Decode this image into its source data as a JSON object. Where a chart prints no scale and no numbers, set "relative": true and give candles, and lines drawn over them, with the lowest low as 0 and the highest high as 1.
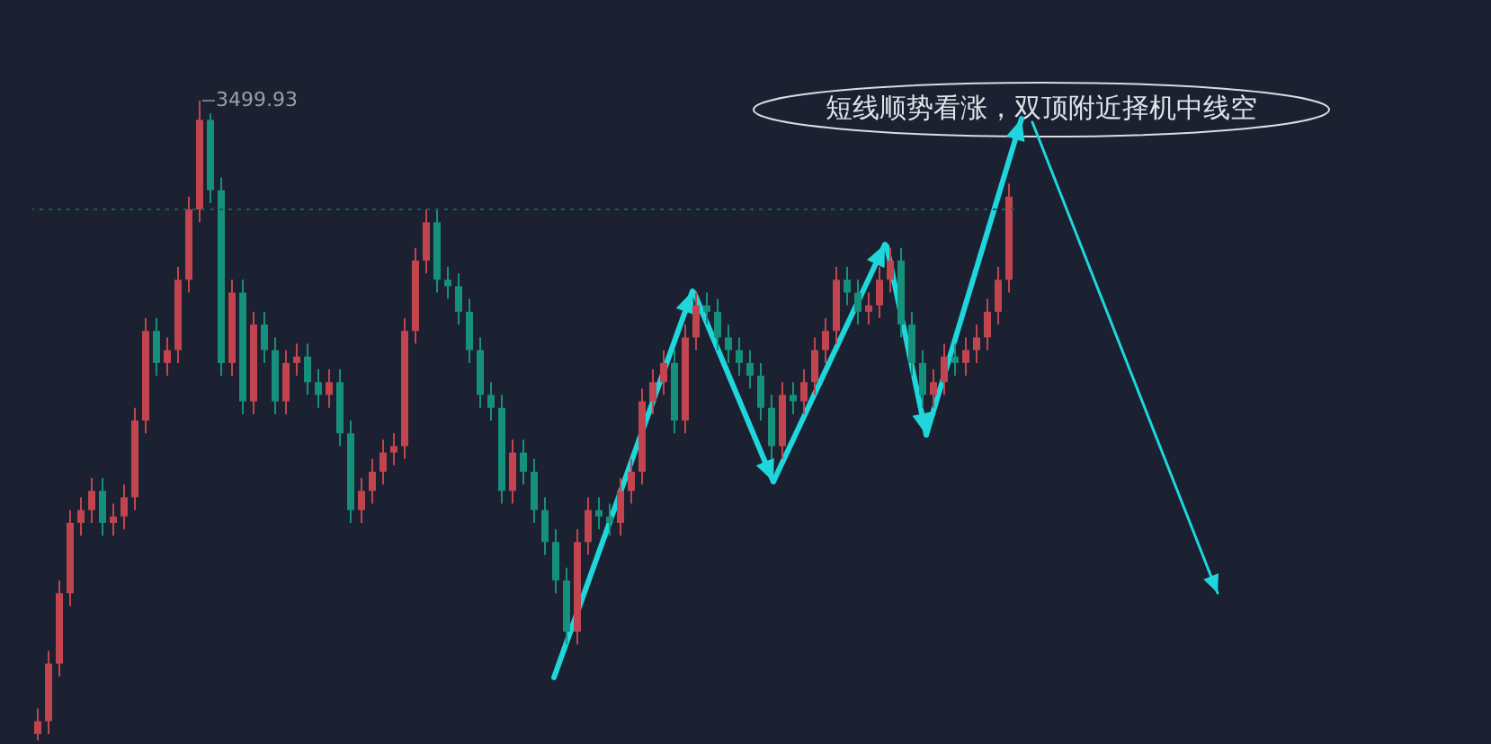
{
  "chart_data": {
    "type": "candlestick",
    "relative": true,
    "colors": [
      "#c1444f",
      "#c1444f",
      "#c1444f",
      "#c1444f",
      "#c1444f",
      "#c1444f",
      "#15907a",
      "#c1444f",
      "#c1444f",
      "#c1444f",
      "#c1444f",
      "#15907a",
      "#c1444f",
      "#c1444f",
      "#c1444f",
      "#c1444f",
      "#15907a",
      "#15907a",
      "#c1444f",
      "#15907a",
      "#c1444f",
      "#15907a",
      "#15907a",
      "#c1444f",
      "#c1444f",
      "#15907a",
      "#15907a",
      "#c1444f",
      "#15907a",
      "#15907a",
      "#c1444f",
      "#c1444f",
      "#c1444f",
      "#c1444f",
      "#c1444f",
      "#c1444f",
      "#c1444f",
      "#15907a",
      "#15907a",
      "#15907a",
      "#15907a",
      "#15907a",
      "#15907a",
      "#15907a",
      "#c1444f",
      "#15907a",
      "#15907a",
      "#15907a",
      "#15907a",
      "#15907a",
      "#c1444f",
      "#c1444f",
      "#15907a",
      "#15907a",
      "#c1444f",
      "#c1444f",
      "#c1444f",
      "#c1444f",
      "#c1444f",
      "#15907a",
      "#c1444f",
      "#c1444f",
      "#15907a",
      "#15907a",
      "#15907a",
      "#15907a",
      "#15907a",
      "#15907a",
      "#15907a",
      "#c1444f",
      "#15907a",
      "#c1444f",
      "#c1444f",
      "#c1444f",
      "#c1444f",
      "#15907a",
      "#15907a",
      "#c1444f",
      "#c1444f",
      "#c1444f",
      "#15907a",
      "#15907a",
      "#15907a",
      "#c1444f",
      "#c1444f",
      "#15907a",
      "#c1444f",
      "#c1444f",
      "#c1444f",
      "#c1444f",
      "#c1444f"
    ],
    "categories": [
      null,
      null,
      null,
      null,
      null,
      null,
      null,
      null,
      null,
      null,
      null,
      null,
      null,
      null,
      null,
      null,
      null,
      null,
      null,
      null,
      null,
      null,
      null,
      null,
      null,
      null,
      null,
      null,
      null,
      null,
      null,
      null,
      null,
      null,
      null,
      null,
      null,
      null,
      null,
      null,
      null,
      null,
      null,
      null,
      null,
      null,
      null,
      null,
      null,
      null,
      null,
      null,
      null,
      null,
      null,
      null,
      null,
      null,
      null,
      null,
      null,
      null,
      null,
      null,
      null,
      null,
      null,
      null,
      null,
      null,
      null,
      null,
      null,
      null,
      null,
      null,
      null,
      null,
      null,
      null,
      null,
      null,
      null,
      null,
      null,
      null,
      null,
      null,
      null,
      null,
      null
    ],
    "ohlc": [
      [
        0.01,
        0.05,
        0,
        0.03
      ],
      [
        0.03,
        0.14,
        0.01,
        0.12
      ],
      [
        0.12,
        0.25,
        0.1,
        0.23
      ],
      [
        0.23,
        0.36,
        0.21,
        0.34
      ],
      [
        0.34,
        0.38,
        0.32,
        0.36
      ],
      [
        0.36,
        0.41,
        0.34,
        0.39
      ],
      [
        0.39,
        0.41,
        0.32,
        0.34
      ],
      [
        0.34,
        0.37,
        0.32,
        0.35
      ],
      [
        0.35,
        0.4,
        0.33,
        0.38
      ],
      [
        0.38,
        0.52,
        0.36,
        0.5
      ],
      [
        0.5,
        0.66,
        0.48,
        0.64
      ],
      [
        0.64,
        0.66,
        0.57,
        0.59
      ],
      [
        0.59,
        0.63,
        0.57,
        0.61
      ],
      [
        0.61,
        0.74,
        0.59,
        0.72
      ],
      [
        0.72,
        0.85,
        0.7,
        0.83
      ],
      [
        0.83,
        1,
        0.81,
        0.97
      ],
      [
        0.97,
        0.98,
        0.84,
        0.86
      ],
      [
        0.86,
        0.88,
        0.57,
        0.59
      ],
      [
        0.59,
        0.72,
        0.57,
        0.7
      ],
      [
        0.7,
        0.72,
        0.51,
        0.53
      ],
      [
        0.53,
        0.67,
        0.51,
        0.65
      ],
      [
        0.65,
        0.67,
        0.59,
        0.61
      ],
      [
        0.61,
        0.63,
        0.51,
        0.53
      ],
      [
        0.53,
        0.61,
        0.51,
        0.59
      ],
      [
        0.59,
        0.62,
        0.57,
        0.6
      ],
      [
        0.6,
        0.62,
        0.54,
        0.56
      ],
      [
        0.56,
        0.58,
        0.52,
        0.54
      ],
      [
        0.54,
        0.58,
        0.52,
        0.56
      ],
      [
        0.56,
        0.58,
        0.46,
        0.48
      ],
      [
        0.48,
        0.5,
        0.34,
        0.36
      ],
      [
        0.36,
        0.41,
        0.34,
        0.39
      ],
      [
        0.39,
        0.44,
        0.37,
        0.42
      ],
      [
        0.42,
        0.47,
        0.4,
        0.45
      ],
      [
        0.45,
        0.48,
        0.43,
        0.46
      ],
      [
        0.46,
        0.66,
        0.44,
        0.64
      ],
      [
        0.64,
        0.77,
        0.62,
        0.75
      ],
      [
        0.75,
        0.83,
        0.73,
        0.81
      ],
      [
        0.81,
        0.83,
        0.7,
        0.72
      ],
      [
        0.72,
        0.74,
        0.69,
        0.71
      ],
      [
        0.71,
        0.73,
        0.65,
        0.67
      ],
      [
        0.67,
        0.69,
        0.59,
        0.61
      ],
      [
        0.61,
        0.63,
        0.52,
        0.54
      ],
      [
        0.54,
        0.56,
        0.5,
        0.52
      ],
      [
        0.52,
        0.54,
        0.37,
        0.39
      ],
      [
        0.39,
        0.47,
        0.37,
        0.45
      ],
      [
        0.45,
        0.47,
        0.4,
        0.42
      ],
      [
        0.42,
        0.44,
        0.34,
        0.36
      ],
      [
        0.36,
        0.38,
        0.29,
        0.31
      ],
      [
        0.31,
        0.33,
        0.23,
        0.25
      ],
      [
        0.25,
        0.27,
        0.15,
        0.17
      ],
      [
        0.17,
        0.33,
        0.15,
        0.31
      ],
      [
        0.31,
        0.38,
        0.29,
        0.36
      ],
      [
        0.36,
        0.38,
        0.33,
        0.35
      ],
      [
        0.35,
        0.37,
        0.32,
        0.34
      ],
      [
        0.34,
        0.41,
        0.32,
        0.39
      ],
      [
        0.39,
        0.44,
        0.37,
        0.42
      ],
      [
        0.42,
        0.55,
        0.4,
        0.53
      ],
      [
        0.53,
        0.58,
        0.51,
        0.56
      ],
      [
        0.56,
        0.61,
        0.54,
        0.59
      ],
      [
        0.59,
        0.61,
        0.48,
        0.5
      ],
      [
        0.5,
        0.65,
        0.48,
        0.63
      ],
      [
        0.63,
        0.7,
        0.61,
        0.68
      ],
      [
        0.68,
        0.7,
        0.65,
        0.67
      ],
      [
        0.67,
        0.69,
        0.61,
        0.63
      ],
      [
        0.63,
        0.65,
        0.59,
        0.61
      ],
      [
        0.61,
        0.63,
        0.57,
        0.59
      ],
      [
        0.59,
        0.61,
        0.55,
        0.57
      ],
      [
        0.57,
        0.59,
        0.5,
        0.52
      ],
      [
        0.52,
        0.54,
        0.44,
        0.46
      ],
      [
        0.46,
        0.56,
        0.44,
        0.54
      ],
      [
        0.54,
        0.56,
        0.51,
        0.53
      ],
      [
        0.53,
        0.58,
        0.51,
        0.56
      ],
      [
        0.56,
        0.63,
        0.54,
        0.61
      ],
      [
        0.61,
        0.66,
        0.59,
        0.64
      ],
      [
        0.64,
        0.74,
        0.62,
        0.72
      ],
      [
        0.72,
        0.74,
        0.68,
        0.7
      ],
      [
        0.7,
        0.72,
        0.65,
        0.67
      ],
      [
        0.67,
        0.7,
        0.65,
        0.68
      ],
      [
        0.68,
        0.74,
        0.66,
        0.72
      ],
      [
        0.72,
        0.77,
        0.7,
        0.75
      ],
      [
        0.75,
        0.77,
        0.63,
        0.65
      ],
      [
        0.65,
        0.67,
        0.57,
        0.59
      ],
      [
        0.59,
        0.61,
        0.52,
        0.54
      ],
      [
        0.54,
        0.58,
        0.52,
        0.56
      ],
      [
        0.56,
        0.62,
        0.54,
        0.6
      ],
      [
        0.6,
        0.62,
        0.57,
        0.59
      ],
      [
        0.59,
        0.63,
        0.57,
        0.61
      ],
      [
        0.61,
        0.65,
        0.59,
        0.63
      ],
      [
        0.63,
        0.69,
        0.61,
        0.67
      ],
      [
        0.67,
        0.74,
        0.65,
        0.72
      ],
      [
        0.72,
        0.87,
        0.7,
        0.85
      ]
    ],
    "ref_lines": [
      {
        "axis": "y",
        "value": 0.83,
        "color": "#1f5a55",
        "line_style": "dotted"
      }
    ],
    "annotations": [
      "3499.93",
      "短线顺势看涨，双顶附近择机中线空"
    ]
  }
}
